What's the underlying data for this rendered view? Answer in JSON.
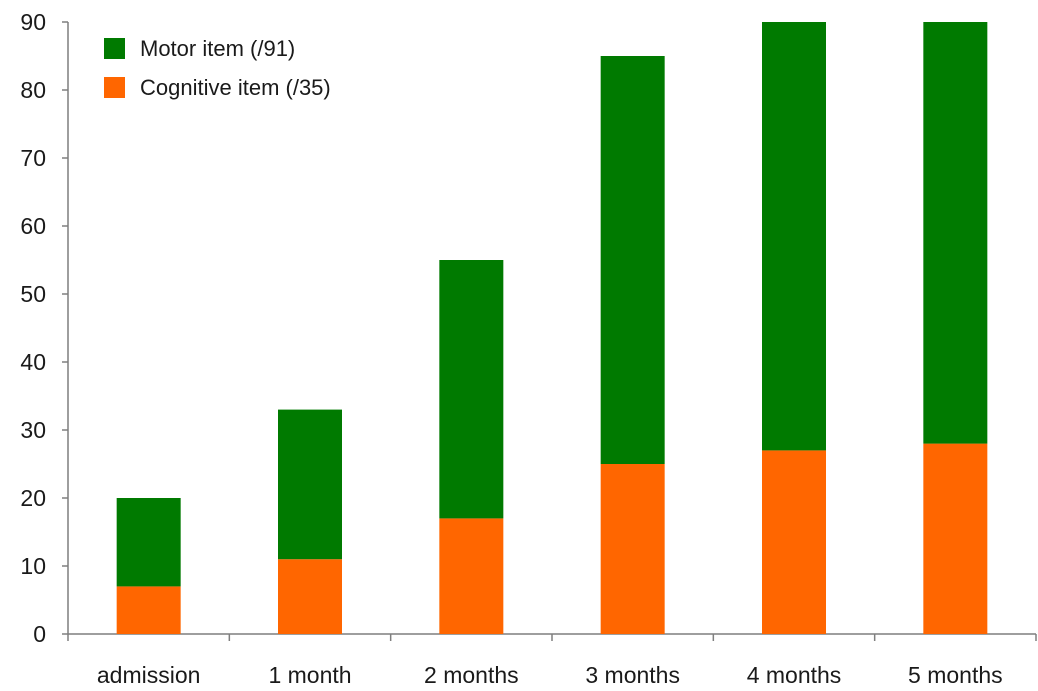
{
  "chart_data": {
    "type": "bar",
    "stacked": true,
    "categories": [
      "admission",
      "1 month",
      "2 months",
      "3 months",
      "4 months",
      "5 months"
    ],
    "series": [
      {
        "name": "Cognitive item (/35)",
        "values": [
          7,
          11,
          17,
          25,
          27,
          28
        ],
        "color": "#ff6600"
      },
      {
        "name": "Motor item (/91)",
        "values": [
          13,
          22,
          38,
          60,
          63,
          62
        ],
        "color": "#007a00"
      }
    ],
    "legend_order": [
      "Motor item (/91)",
      "Cognitive item (/35)"
    ],
    "legend_position": "top-left",
    "ylim": [
      0,
      90
    ],
    "yticks": [
      0,
      10,
      20,
      30,
      40,
      50,
      60,
      70,
      80,
      90
    ],
    "grid": false
  }
}
